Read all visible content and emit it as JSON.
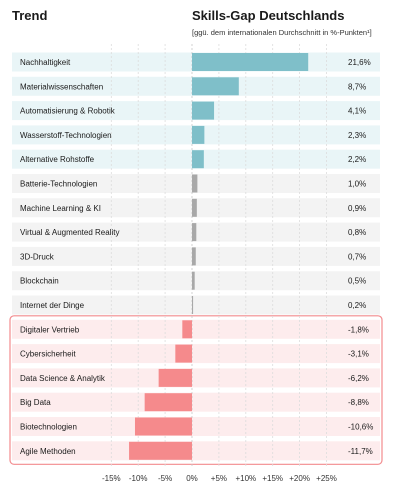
{
  "header": {
    "trend": "Trend",
    "gap_title": "Skills-Gap Deutschlands",
    "gap_subtitle": "[ggü. dem internationalen Durchschnitt in %-Punkten¹]"
  },
  "colors": {
    "positive_bar": "#7fbfc9",
    "positive_band": "#e9f5f7",
    "neutral_bar": "#a8a8a8",
    "neutral_band": "#f3f3f3",
    "negative_bar": "#f58a8c",
    "negative_band": "#fdeced",
    "negative_border": "#f28b8e"
  },
  "chart_data": {
    "type": "bar",
    "orientation": "horizontal",
    "title": "Skills-Gap Deutschlands",
    "subtitle": "[ggü. dem internationalen Durchschnitt in %-Punkten¹]",
    "categories": [
      "Nachhaltigkeit",
      "Materialwissenschaften",
      "Automatisierung & Robotik",
      "Wasserstoff-Technologien",
      "Alternative Rohstoffe",
      "Batterie-Technologien",
      "Machine Learning & KI",
      "Virtual & Augmented Reality",
      "3D-Druck",
      "Blockchain",
      "Internet der Dinge",
      "Digitaler Vertrieb",
      "Cybersicherheit",
      "Data Science & Analytik",
      "Big Data",
      "Biotechnologien",
      "Agile Methoden"
    ],
    "values": [
      21.6,
      8.7,
      4.1,
      2.3,
      2.2,
      1.0,
      0.9,
      0.8,
      0.7,
      0.5,
      0.2,
      -1.8,
      -3.1,
      -6.2,
      -8.8,
      -10.6,
      -11.7
    ],
    "value_labels": [
      "21,6%",
      "8,7%",
      "4,1%",
      "2,3%",
      "2,2%",
      "1,0%",
      "0,9%",
      "0,8%",
      "0,7%",
      "0,5%",
      "0,2%",
      "-1,8%",
      "-3,1%",
      "-6,2%",
      "-8,8%",
      "-10,6%",
      "-11,7%"
    ],
    "groups": [
      "positive",
      "positive",
      "positive",
      "positive",
      "positive",
      "neutral",
      "neutral",
      "neutral",
      "neutral",
      "neutral",
      "neutral",
      "negative",
      "negative",
      "negative",
      "negative",
      "negative",
      "negative"
    ],
    "xlim": [
      -15,
      25
    ],
    "xticks": [
      -15,
      -10,
      -5,
      0,
      5,
      10,
      15,
      20,
      25
    ],
    "xtick_labels": [
      "-15%",
      "-10%",
      "-5%",
      "0%",
      "+5%",
      "+10%",
      "+15%",
      "+20%",
      "+25%"
    ],
    "grid": "dashed vertical",
    "legend": "none"
  }
}
